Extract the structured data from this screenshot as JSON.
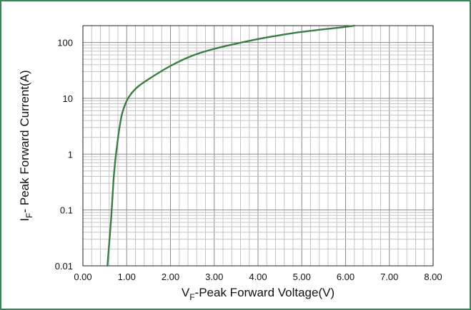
{
  "chart_data": {
    "type": "line",
    "title": "",
    "xlabel": {
      "symbol": "V",
      "subscript": "F",
      "text": "-Peak Forward Voltage(V)"
    },
    "ylabel": {
      "symbol": "I",
      "subscript": "F",
      "text": "- Peak Forward Current(A)"
    },
    "xlim": [
      0,
      8
    ],
    "ylim": [
      0.01,
      200
    ],
    "y_scale": "log",
    "grid": true,
    "x_ticks": [
      "0.00",
      "1.00",
      "2.00",
      "3.00",
      "4.00",
      "5.00",
      "6.00",
      "7.00",
      "8.00"
    ],
    "y_ticks": [
      {
        "value": 0.01,
        "label": "0.01"
      },
      {
        "value": 0.1,
        "label": "0.1"
      },
      {
        "value": 1,
        "label": "1"
      },
      {
        "value": 10,
        "label": "10"
      },
      {
        "value": 100,
        "label": "100"
      }
    ],
    "series": [
      {
        "color": "#3a7d44",
        "x": [
          0.56,
          0.6,
          0.65,
          0.7,
          0.75,
          0.8,
          0.85,
          0.9,
          1.0,
          1.1,
          1.25,
          1.5,
          2.0,
          2.5,
          3.0,
          3.5,
          4.0,
          4.5,
          5.0,
          5.5,
          6.0,
          6.2
        ],
        "y": [
          0.01,
          0.025,
          0.08,
          0.35,
          0.9,
          1.9,
          3.5,
          5.5,
          9.0,
          12.0,
          16.0,
          22.0,
          38.0,
          58.0,
          77.0,
          95.0,
          115.0,
          135.0,
          155.0,
          172.0,
          190.0,
          200.0
        ]
      }
    ]
  }
}
